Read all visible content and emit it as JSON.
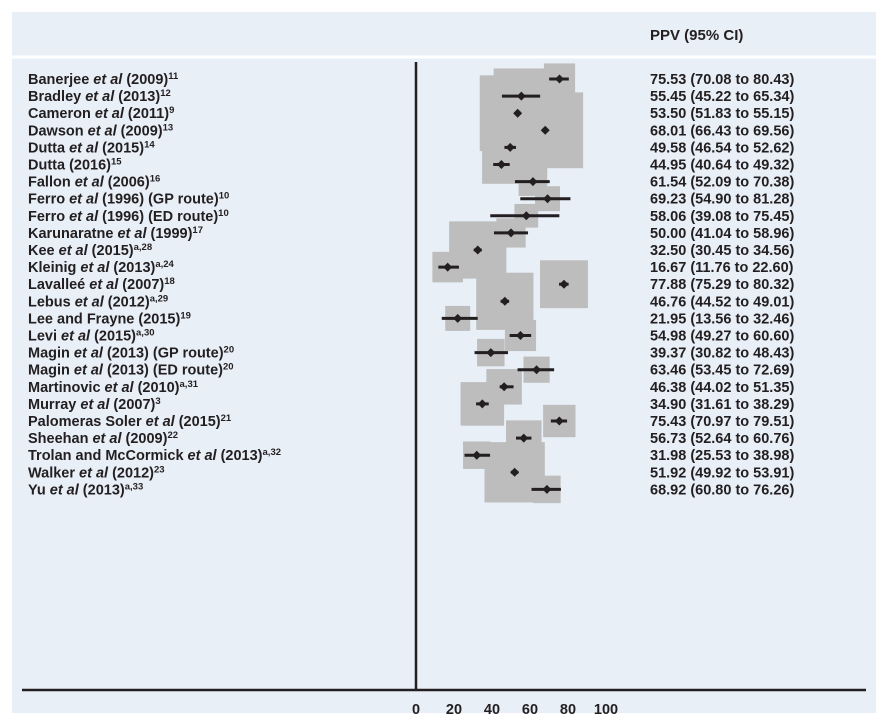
{
  "colors": {
    "background": "#e8eff7",
    "box": "#bdbdbd",
    "estimate": "#231f20",
    "axis": "#231f20"
  },
  "chart_data": {
    "type": "forest",
    "column_header": "PPV (95% CI)",
    "xlim": [
      0,
      100
    ],
    "x_ticks": [
      0,
      20,
      40,
      60,
      80,
      100
    ],
    "studies": [
      {
        "parts": [
          {
            "t": "Banerjee "
          },
          {
            "t": "et al",
            "i": true
          },
          {
            "t": " (2009)"
          }
        ],
        "sup": "11",
        "estimate": 75.53,
        "lower": 70.08,
        "upper": 80.43,
        "weight": 0.18,
        "ci_text": "75.53 (70.08 to 80.43)"
      },
      {
        "parts": [
          {
            "t": "Bradley "
          },
          {
            "t": "et al",
            "i": true
          },
          {
            "t": " (2013)"
          }
        ],
        "sup": "12",
        "estimate": 55.45,
        "lower": 45.22,
        "upper": 65.34,
        "weight": 0.57,
        "ci_text": "55.45 (45.22 to 65.34)"
      },
      {
        "parts": [
          {
            "t": "Cameron "
          },
          {
            "t": "et al",
            "i": true
          },
          {
            "t": " (2011)"
          }
        ],
        "sup": "9",
        "estimate": 53.5,
        "lower": 51.83,
        "upper": 55.15,
        "weight": 0.9,
        "ci_text": "53.50 (51.83 to 55.15)"
      },
      {
        "parts": [
          {
            "t": "Dawson "
          },
          {
            "t": "et al",
            "i": true
          },
          {
            "t": " (2009)"
          }
        ],
        "sup": "13",
        "estimate": 68.01,
        "lower": 66.43,
        "upper": 69.56,
        "weight": 0.9,
        "ci_text": "68.01 (66.43 to 69.56)"
      },
      {
        "parts": [
          {
            "t": "Dutta "
          },
          {
            "t": "et al",
            "i": true
          },
          {
            "t": " (2015)"
          }
        ],
        "sup": "14",
        "estimate": 49.58,
        "lower": 46.54,
        "upper": 52.62,
        "weight": 0.5,
        "ci_text": "49.58 (46.54 to 52.62)"
      },
      {
        "parts": [
          {
            "t": "Dutta (2016)"
          }
        ],
        "sup": "15",
        "estimate": 44.95,
        "lower": 40.64,
        "upper": 49.32,
        "weight": 0.3,
        "ci_text": "44.95 (40.64 to 49.32)"
      },
      {
        "parts": [
          {
            "t": "Fallon "
          },
          {
            "t": "et al",
            "i": true
          },
          {
            "t": " (2006)"
          }
        ],
        "sup": "16",
        "estimate": 61.54,
        "lower": 52.09,
        "upper": 70.38,
        "weight": 0.14,
        "ci_text": "61.54 (52.09 to 70.38)"
      },
      {
        "parts": [
          {
            "t": "Ferro "
          },
          {
            "t": "et al",
            "i": true
          },
          {
            "t": " (1996) (GP route)"
          }
        ],
        "sup": "10",
        "estimate": 69.23,
        "lower": 54.9,
        "upper": 81.28,
        "weight": 0.08,
        "ci_text": "69.23 (54.90 to 81.28)"
      },
      {
        "parts": [
          {
            "t": "Ferro "
          },
          {
            "t": "et al",
            "i": true
          },
          {
            "t": " (1996) (ED route)"
          }
        ],
        "sup": "10",
        "estimate": 58.06,
        "lower": 39.08,
        "upper": 75.45,
        "weight": 0.06,
        "ci_text": "58.06 (39.08 to 75.45)"
      },
      {
        "parts": [
          {
            "t": "Karunaratne "
          },
          {
            "t": "et al",
            "i": true
          },
          {
            "t": " (1999)"
          }
        ],
        "sup": "17",
        "estimate": 50.0,
        "lower": 41.04,
        "upper": 58.96,
        "weight": 0.15,
        "ci_text": "50.00 (41.04 to 58.96)"
      },
      {
        "parts": [
          {
            "t": "Kee "
          },
          {
            "t": "et al",
            "i": true
          },
          {
            "t": " (2015)"
          }
        ],
        "sup": "a,28",
        "estimate": 32.5,
        "lower": 30.45,
        "upper": 34.56,
        "weight": 0.6,
        "ci_text": "32.50 (30.45 to 34.56)"
      },
      {
        "parts": [
          {
            "t": "Kleinig "
          },
          {
            "t": "et al",
            "i": true
          },
          {
            "t": " (2013)"
          }
        ],
        "sup": "a,24",
        "estimate": 16.67,
        "lower": 11.76,
        "upper": 22.6,
        "weight": 0.17,
        "ci_text": "16.67 (11.76 to 22.60)"
      },
      {
        "parts": [
          {
            "t": "Lavalleé "
          },
          {
            "t": "et al",
            "i": true
          },
          {
            "t": " (2007)"
          }
        ],
        "sup": "18",
        "estimate": 77.88,
        "lower": 75.29,
        "upper": 80.32,
        "weight": 0.45,
        "ci_text": "77.88 (75.29 to 80.32)"
      },
      {
        "parts": [
          {
            "t": "Lebus "
          },
          {
            "t": "et al",
            "i": true
          },
          {
            "t": " (2012)"
          }
        ],
        "sup": "a,29",
        "estimate": 46.76,
        "lower": 44.52,
        "upper": 49.01,
        "weight": 0.6,
        "ci_text": "46.76 (44.52 to 49.01)"
      },
      {
        "parts": [
          {
            "t": "Lee and Frayne (2015)"
          }
        ],
        "sup": "19",
        "estimate": 21.95,
        "lower": 13.56,
        "upper": 32.46,
        "weight": 0.08,
        "ci_text": "21.95 (13.56 to 32.46)"
      },
      {
        "parts": [
          {
            "t": "Levi "
          },
          {
            "t": "et al",
            "i": true
          },
          {
            "t": " (2015)"
          }
        ],
        "sup": "a,30",
        "estimate": 54.98,
        "lower": 49.27,
        "upper": 60.6,
        "weight": 0.18,
        "ci_text": "54.98 (49.27 to 60.60)"
      },
      {
        "parts": [
          {
            "t": "Magin "
          },
          {
            "t": "et al",
            "i": true
          },
          {
            "t": " (2013) (GP route)"
          }
        ],
        "sup": "20",
        "estimate": 39.37,
        "lower": 30.82,
        "upper": 48.43,
        "weight": 0.12,
        "ci_text": "39.37 (30.82 to 48.43)"
      },
      {
        "parts": [
          {
            "t": "Magin "
          },
          {
            "t": "et al",
            "i": true
          },
          {
            "t": " (2013) (ED route)"
          }
        ],
        "sup": "20",
        "estimate": 63.46,
        "lower": 53.45,
        "upper": 72.69,
        "weight": 0.1,
        "ci_text": "63.46 (53.45 to 72.69)"
      },
      {
        "parts": [
          {
            "t": "Martinovic "
          },
          {
            "t": "et al",
            "i": true
          },
          {
            "t": " (2010)"
          }
        ],
        "sup": "a,31",
        "estimate": 46.38,
        "lower": 44.02,
        "upper": 51.35,
        "weight": 0.25,
        "ci_text": "46.38 (44.02 to 51.35)"
      },
      {
        "parts": [
          {
            "t": "Murray "
          },
          {
            "t": "et al",
            "i": true
          },
          {
            "t": " (2007)"
          }
        ],
        "sup": "3",
        "estimate": 34.9,
        "lower": 31.61,
        "upper": 38.29,
        "weight": 0.38,
        "ci_text": "34.90 (31.61 to 38.29)"
      },
      {
        "parts": [
          {
            "t": "Palomeras Soler "
          },
          {
            "t": "et al",
            "i": true
          },
          {
            "t": " (2015)"
          }
        ],
        "sup": "21",
        "estimate": 75.43,
        "lower": 70.97,
        "upper": 79.51,
        "weight": 0.2,
        "ci_text": "75.43 (70.97 to 79.51)"
      },
      {
        "parts": [
          {
            "t": "Sheehan "
          },
          {
            "t": "et al",
            "i": true
          },
          {
            "t": " (2009)"
          }
        ],
        "sup": "22",
        "estimate": 56.73,
        "lower": 52.64,
        "upper": 60.76,
        "weight": 0.25,
        "ci_text": "56.73 (52.64 to 60.76)"
      },
      {
        "parts": [
          {
            "t": "Trolan and McCormick "
          },
          {
            "t": "et al",
            "i": true
          },
          {
            "t": " (2013)"
          }
        ],
        "sup": "a,32",
        "estimate": 31.98,
        "lower": 25.53,
        "upper": 38.98,
        "weight": 0.12,
        "ci_text": "31.98 (25.53 to 38.98)"
      },
      {
        "parts": [
          {
            "t": "Walker "
          },
          {
            "t": "et al",
            "i": true
          },
          {
            "t": " (2012)"
          }
        ],
        "sup": "23",
        "estimate": 51.92,
        "lower": 49.92,
        "upper": 53.91,
        "weight": 0.65,
        "ci_text": "51.92 (49.92 to 53.91)"
      },
      {
        "parts": [
          {
            "t": "Yu "
          },
          {
            "t": "et al",
            "i": true
          },
          {
            "t": " (2013)"
          }
        ],
        "sup": "a,33",
        "estimate": 68.92,
        "lower": 60.8,
        "upper": 76.26,
        "weight": 0.12,
        "ci_text": "68.92 (60.80 to 76.26)"
      }
    ]
  }
}
